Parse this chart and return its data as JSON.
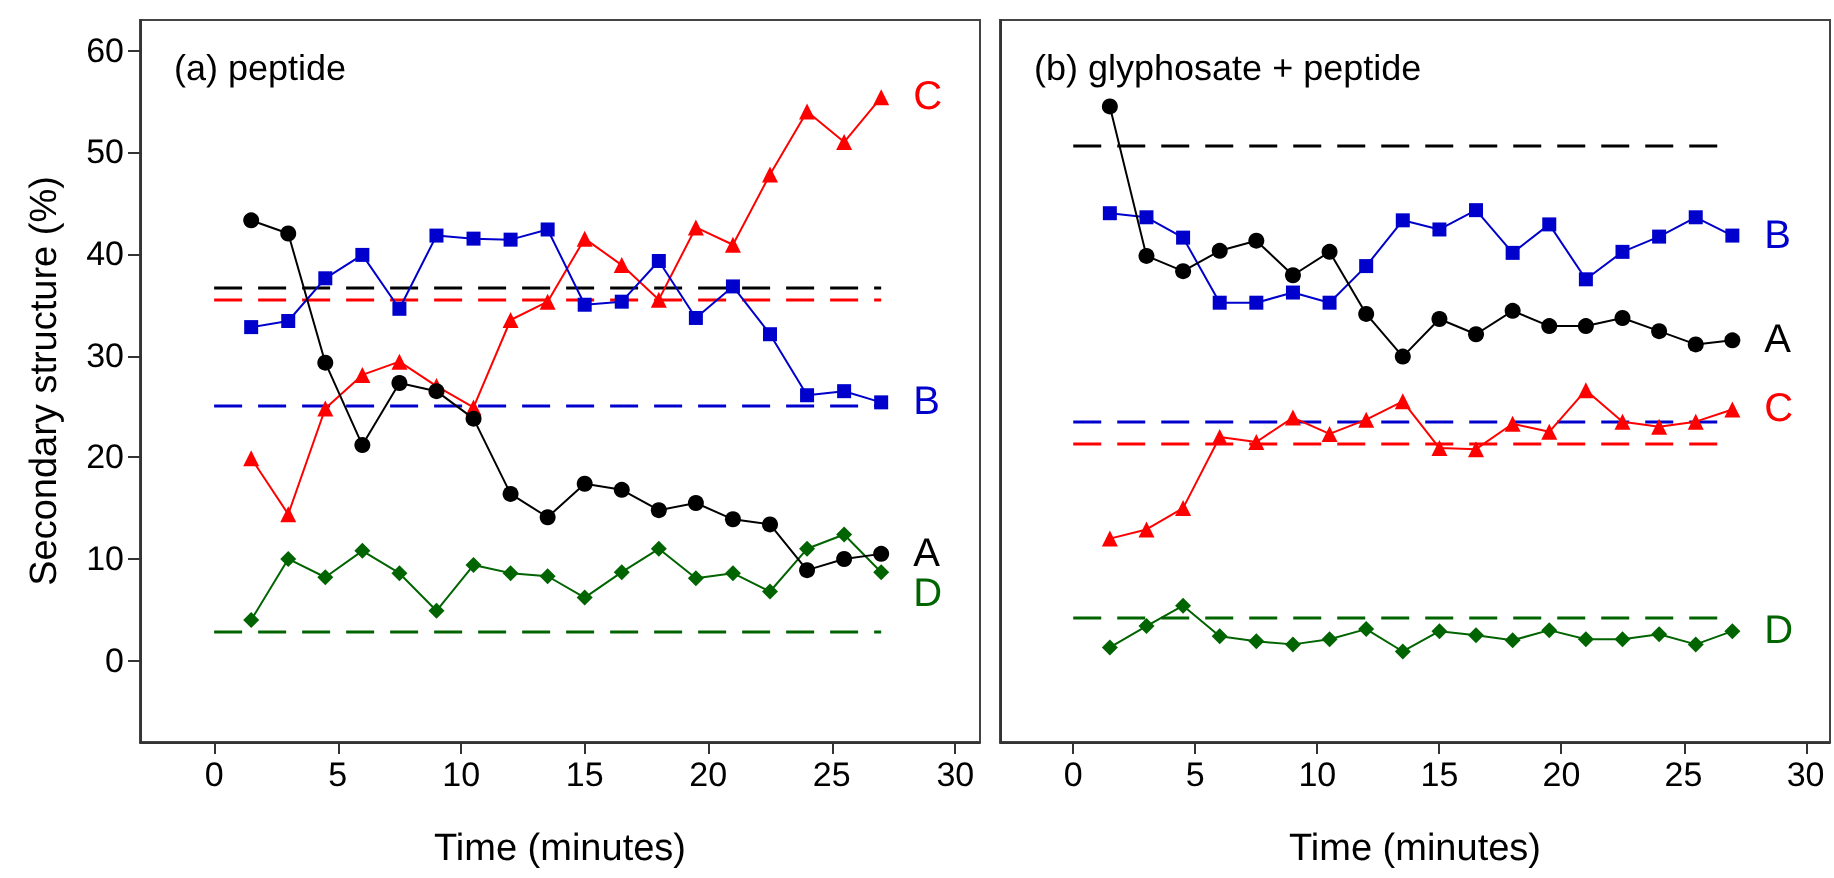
{
  "chart_data": [
    {
      "type": "line",
      "title": "(a) peptide",
      "xlabel": "Time (minutes)",
      "ylabel": "Secondary structure (%)",
      "x": [
        1.5,
        3,
        4.5,
        6,
        7.5,
        9,
        10.5,
        12,
        13.5,
        15,
        16.5,
        18,
        19.5,
        21,
        22.5,
        24,
        25.5,
        27
      ],
      "xlim": [
        -3,
        31
      ],
      "xticks": [
        0,
        5,
        10,
        15,
        20,
        25,
        30
      ],
      "ylim": [
        -8,
        63
      ],
      "yticks": [
        0,
        10,
        20,
        30,
        40,
        50,
        60
      ],
      "grid": false,
      "legend": false,
      "line_style": "solid",
      "series": [
        {
          "name": "A",
          "color": "#000000",
          "marker": "circle",
          "values": [
            43.3,
            42,
            29.3,
            21.2,
            27.3,
            26.5,
            23.8,
            16.4,
            14.1,
            17.4,
            16.8,
            14.8,
            15.5,
            13.9,
            13.4,
            8.9,
            10,
            10.5
          ]
        },
        {
          "name": "B",
          "color": "#0000cc",
          "marker": "square",
          "values": [
            32.8,
            33.4,
            37.6,
            39.9,
            34.6,
            41.8,
            41.5,
            41.4,
            42.4,
            35,
            35.3,
            39.3,
            33.7,
            36.8,
            32.1,
            26.1,
            26.5,
            25.4
          ]
        },
        {
          "name": "C",
          "color": "#ff0000",
          "marker": "triangle",
          "values": [
            19.9,
            14.4,
            24.8,
            28.1,
            29.4,
            27,
            24.9,
            33.5,
            35.3,
            41.5,
            38.9,
            35.5,
            42.6,
            40.9,
            47.8,
            54,
            51,
            55.4
          ]
        },
        {
          "name": "D",
          "color": "#006400",
          "marker": "diamond",
          "values": [
            4,
            10,
            8.2,
            10.8,
            8.6,
            4.9,
            9.4,
            8.6,
            8.3,
            6.2,
            8.7,
            11,
            8.1,
            8.6,
            6.8,
            11,
            12.4,
            8.7
          ]
        }
      ],
      "ref_lines": [
        {
          "axis": "y",
          "value": 36.6,
          "color": "#000000",
          "line_style": "dashed"
        },
        {
          "axis": "y",
          "value": 35.6,
          "color": "#ff0000",
          "line_style": "dashed"
        },
        {
          "axis": "y",
          "value": 25.1,
          "color": "#0000cc",
          "line_style": "dashed"
        },
        {
          "axis": "y",
          "value": 2.8,
          "color": "#006400",
          "line_style": "dashed"
        }
      ]
    },
    {
      "type": "line",
      "title": "(b) glyphosate + peptide",
      "xlabel": "Time (minutes)",
      "x": [
        1.5,
        3,
        4.5,
        6,
        7.5,
        9,
        10.5,
        12,
        13.5,
        15,
        16.5,
        18,
        19.5,
        21,
        22.5,
        24,
        25.5,
        27
      ],
      "xlim": [
        -3,
        31
      ],
      "xticks": [
        0,
        5,
        10,
        15,
        20,
        25,
        30
      ],
      "ylim": [
        -8,
        63
      ],
      "tick_labels": "x",
      "grid": false,
      "legend": false,
      "line_style": "solid",
      "series": [
        {
          "name": "A",
          "color": "#000000",
          "marker": "circle",
          "values": [
            54.5,
            39.8,
            38.3,
            40.3,
            41.3,
            37.9,
            40.2,
            34.1,
            29.9,
            33.6,
            32.1,
            34.4,
            32.9,
            32.9,
            33.7,
            32.4,
            31.1,
            31.5
          ]
        },
        {
          "name": "B",
          "color": "#0000cc",
          "marker": "square",
          "values": [
            44,
            43.6,
            41.6,
            35.2,
            35.2,
            36.2,
            35.2,
            38.8,
            43.3,
            42.4,
            44.3,
            40.1,
            42.9,
            37.5,
            40.2,
            41.7,
            43.6,
            41.8
          ]
        },
        {
          "name": "C",
          "color": "#ff0000",
          "marker": "triangle",
          "values": [
            12,
            12.9,
            15,
            22,
            21.5,
            23.9,
            22.3,
            23.7,
            25.5,
            20.9,
            20.8,
            23.3,
            22.5,
            26.6,
            23.5,
            23,
            23.5,
            24.7
          ]
        },
        {
          "name": "D",
          "color": "#006400",
          "marker": "diamond",
          "values": [
            1.3,
            3.4,
            5.4,
            2.4,
            1.9,
            1.6,
            2.1,
            3.1,
            0.9,
            2.9,
            2.5,
            2,
            3,
            2.1,
            2.1,
            2.6,
            1.6,
            2.9
          ]
        }
      ],
      "ref_lines": [
        {
          "axis": "y",
          "value": 50.7,
          "color": "#000000",
          "line_style": "dashed"
        },
        {
          "axis": "y",
          "value": 23.6,
          "color": "#0000cc",
          "line_style": "dashed"
        },
        {
          "axis": "y",
          "value": 21.4,
          "color": "#ff0000",
          "line_style": "dashed"
        },
        {
          "axis": "y",
          "value": 4.3,
          "color": "#006400",
          "line_style": "dashed"
        }
      ]
    }
  ]
}
